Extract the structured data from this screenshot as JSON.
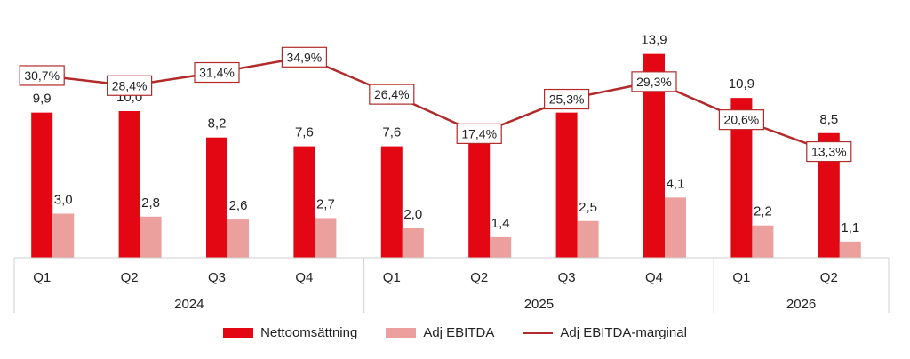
{
  "chart_data": {
    "type": "bar",
    "categories": [
      "Q1",
      "Q2",
      "Q3",
      "Q4",
      "Q1",
      "Q2",
      "Q3",
      "Q4",
      "Q1",
      "Q2"
    ],
    "groups": [
      {
        "label": "2024",
        "count": 4
      },
      {
        "label": "2025",
        "count": 4
      },
      {
        "label": "2026",
        "count": 2
      }
    ],
    "series": [
      {
        "name": "Nettoomsättning",
        "type": "bar",
        "color": "#E30613",
        "values": [
          9.9,
          10.0,
          8.2,
          7.6,
          7.6,
          7.8,
          9.9,
          13.9,
          10.9,
          8.5
        ],
        "labels": [
          "9,9",
          "10,0",
          "8,2",
          "7,6",
          "7,6",
          "7,8",
          "9,9",
          "13,9",
          "10,9",
          "8,5"
        ]
      },
      {
        "name": "Adj EBITDA",
        "type": "bar",
        "color": "#EBA09E",
        "values": [
          3.0,
          2.8,
          2.6,
          2.7,
          2.0,
          1.4,
          2.5,
          4.1,
          2.2,
          1.1
        ],
        "labels": [
          "3,0",
          "2,8",
          "2,6",
          "2,7",
          "2,0",
          "1,4",
          "2,5",
          "4,1",
          "2,2",
          "1,1"
        ]
      },
      {
        "name": "Adj EBITDA-marginal",
        "type": "line",
        "color": "#B22A2A",
        "values": [
          30.7,
          28.4,
          31.4,
          34.9,
          26.4,
          17.4,
          25.3,
          29.3,
          20.6,
          13.3
        ],
        "labels": [
          "30,7%",
          "28,4%",
          "31,4%",
          "34,9%",
          "26,4%",
          "17,4%",
          "25,3%",
          "29,3%",
          "20,6%",
          "13,3%"
        ]
      }
    ],
    "legend_position": "bottom",
    "grid": false
  }
}
